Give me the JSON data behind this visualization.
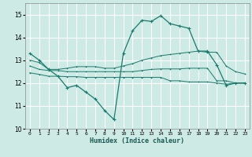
{
  "xlabel": "Humidex (Indice chaleur)",
  "ylabel": "",
  "background_color": "#cdeae5",
  "grid_color": "#ffffff",
  "line_color": "#1a7a6e",
  "xlim": [
    -0.5,
    23.5
  ],
  "ylim": [
    10,
    15.5
  ],
  "yticks": [
    10,
    11,
    12,
    13,
    14,
    15
  ],
  "xticks": [
    0,
    1,
    2,
    3,
    4,
    5,
    6,
    7,
    8,
    9,
    10,
    11,
    12,
    13,
    14,
    15,
    16,
    17,
    18,
    19,
    20,
    21,
    22,
    23
  ],
  "line1_x": [
    0,
    1,
    2,
    3,
    4,
    5,
    6,
    7,
    8,
    9,
    10,
    11,
    12,
    13,
    14,
    15,
    16,
    17,
    18,
    19,
    20,
    21,
    22,
    23
  ],
  "line1_y": [
    13.3,
    13.0,
    12.6,
    12.3,
    11.8,
    11.9,
    11.6,
    11.3,
    10.8,
    10.4,
    13.3,
    14.3,
    14.75,
    14.7,
    14.95,
    14.6,
    14.5,
    14.4,
    13.4,
    13.4,
    12.8,
    11.9,
    12.0,
    12.0
  ],
  "line2_x": [
    0,
    1,
    2,
    3,
    4,
    5,
    6,
    7,
    8,
    9,
    10,
    11,
    12,
    13,
    14,
    15,
    16,
    17,
    18,
    19,
    20,
    21,
    22,
    23
  ],
  "line2_y": [
    13.0,
    12.9,
    12.6,
    12.6,
    12.65,
    12.72,
    12.72,
    12.72,
    12.65,
    12.65,
    12.75,
    12.85,
    13.0,
    13.1,
    13.2,
    13.25,
    13.3,
    13.35,
    13.4,
    13.35,
    13.35,
    12.75,
    12.5,
    12.4
  ],
  "line3_x": [
    0,
    1,
    2,
    3,
    4,
    5,
    6,
    7,
    8,
    9,
    10,
    11,
    12,
    13,
    14,
    15,
    16,
    17,
    18,
    19,
    20,
    21,
    22,
    23
  ],
  "line3_y": [
    12.75,
    12.6,
    12.55,
    12.55,
    12.5,
    12.5,
    12.5,
    12.5,
    12.5,
    12.5,
    12.5,
    12.5,
    12.55,
    12.6,
    12.62,
    12.62,
    12.62,
    12.65,
    12.65,
    12.65,
    12.1,
    12.1,
    12.0,
    12.0
  ],
  "line4_x": [
    0,
    1,
    2,
    3,
    4,
    5,
    6,
    7,
    8,
    9,
    10,
    11,
    12,
    13,
    14,
    15,
    16,
    17,
    18,
    19,
    20,
    21,
    22,
    23
  ],
  "line4_y": [
    12.45,
    12.38,
    12.3,
    12.3,
    12.28,
    12.28,
    12.25,
    12.25,
    12.25,
    12.25,
    12.25,
    12.25,
    12.25,
    12.25,
    12.25,
    12.1,
    12.1,
    12.05,
    12.05,
    12.05,
    12.0,
    11.95,
    12.0,
    12.0
  ]
}
